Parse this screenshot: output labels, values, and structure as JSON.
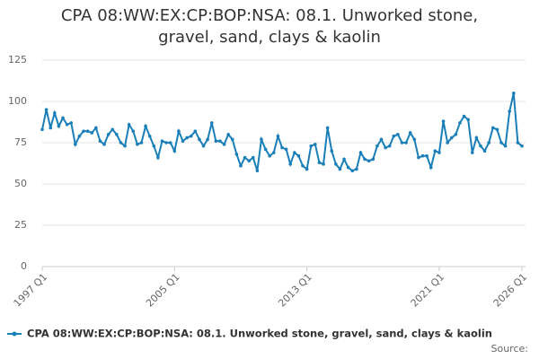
{
  "chart_data": {
    "type": "line",
    "title": "CPA 08:WW:EX:CP:BOP:NSA: 08.1. Unworked stone, gravel, sand, clays & kaolin",
    "categories": [
      "1997 Q1",
      null,
      null,
      null,
      null,
      null,
      null,
      null,
      null,
      null,
      null,
      null,
      null,
      null,
      null,
      null,
      null,
      null,
      null,
      null,
      null,
      null,
      null,
      null,
      null,
      null,
      null,
      null,
      null,
      null,
      null,
      null,
      "2005 Q1",
      null,
      null,
      null,
      null,
      null,
      null,
      null,
      null,
      null,
      null,
      null,
      null,
      null,
      null,
      null,
      null,
      null,
      null,
      null,
      null,
      null,
      null,
      null,
      null,
      null,
      null,
      null,
      null,
      null,
      null,
      null,
      "2013 Q1",
      null,
      null,
      null,
      null,
      null,
      null,
      null,
      null,
      null,
      null,
      null,
      null,
      null,
      null,
      null,
      null,
      null,
      null,
      null,
      null,
      null,
      null,
      null,
      null,
      null,
      null,
      null,
      null,
      null,
      null,
      null,
      "2021 Q1",
      null,
      null,
      null,
      null,
      null,
      null,
      null,
      null,
      null,
      null,
      null,
      null,
      null,
      null,
      null,
      null,
      null,
      null,
      null,
      "2026 Q1"
    ],
    "series": [
      {
        "name": "CPA 08:WW:EX:CP:BOP:NSA: 08.1. Unworked stone, gravel, sand, clays & kaolin",
        "color": "#1a7fb8",
        "values": [
          83,
          95,
          84,
          93,
          85,
          90,
          86,
          87,
          74,
          79,
          82,
          82,
          81,
          84,
          76,
          74,
          80,
          83,
          80,
          75,
          73,
          86,
          82,
          74,
          75,
          85,
          79,
          73,
          66,
          76,
          75,
          75,
          70,
          82,
          76,
          78,
          79,
          82,
          77,
          73,
          77,
          87,
          76,
          76,
          74,
          80,
          77,
          68,
          61,
          66,
          64,
          66,
          58,
          77,
          71,
          67,
          69,
          79,
          72,
          71,
          62,
          69,
          67,
          61,
          59,
          73,
          74,
          63,
          62,
          84,
          70,
          62,
          59,
          65,
          60,
          58,
          59,
          69,
          65,
          64,
          65,
          73,
          77,
          72,
          73,
          79,
          80,
          75,
          75,
          81,
          77,
          66,
          67,
          67,
          60,
          70,
          69,
          88,
          75,
          78,
          80,
          87,
          91,
          89,
          69,
          78,
          73,
          70,
          75,
          84,
          83,
          75,
          73,
          94,
          105,
          75,
          73
        ]
      }
    ],
    "ylim": [
      0,
      125
    ],
    "yticks": [
      0,
      25,
      50,
      75,
      100,
      125
    ],
    "grid": true,
    "legend": "bottom",
    "source": "Source:"
  }
}
